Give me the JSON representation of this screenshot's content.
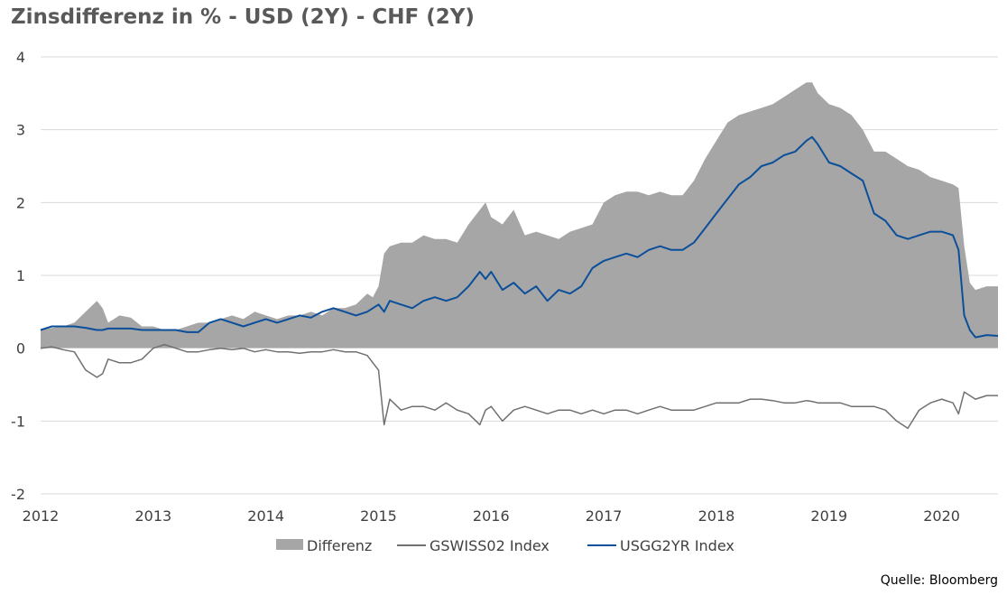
{
  "chart_data": {
    "type": "area",
    "title": "Zinsdifferenz in % - USD (2Y) - CHF (2Y)",
    "source": "Quelle: Bloomberg",
    "xlim": [
      2012.0,
      2020.5
    ],
    "ylim": [
      -2,
      4
    ],
    "y_ticks": [
      "-2",
      "-1",
      "0",
      "1",
      "2",
      "3",
      "4"
    ],
    "x_ticks": [
      "2012",
      "2013",
      "2014",
      "2015",
      "2016",
      "2017",
      "2018",
      "2019",
      "2020"
    ],
    "grid": "horizontal",
    "legend_position": "bottom",
    "x": [
      2012.0,
      2012.1,
      2012.2,
      2012.3,
      2012.4,
      2012.5,
      2012.55,
      2012.6,
      2012.7,
      2012.8,
      2012.9,
      2013.0,
      2013.1,
      2013.2,
      2013.3,
      2013.4,
      2013.5,
      2013.6,
      2013.7,
      2013.8,
      2013.9,
      2014.0,
      2014.1,
      2014.2,
      2014.3,
      2014.4,
      2014.5,
      2014.6,
      2014.7,
      2014.8,
      2014.9,
      2014.95,
      2015.0,
      2015.05,
      2015.1,
      2015.2,
      2015.3,
      2015.4,
      2015.5,
      2015.6,
      2015.7,
      2015.8,
      2015.9,
      2015.95,
      2016.0,
      2016.1,
      2016.2,
      2016.3,
      2016.4,
      2016.5,
      2016.6,
      2016.7,
      2016.8,
      2016.9,
      2017.0,
      2017.1,
      2017.2,
      2017.3,
      2017.4,
      2017.5,
      2017.6,
      2017.7,
      2017.8,
      2017.9,
      2018.0,
      2018.1,
      2018.2,
      2018.3,
      2018.4,
      2018.5,
      2018.6,
      2018.7,
      2018.8,
      2018.85,
      2018.9,
      2019.0,
      2019.1,
      2019.2,
      2019.3,
      2019.4,
      2019.5,
      2019.6,
      2019.7,
      2019.8,
      2019.9,
      2020.0,
      2020.1,
      2020.15,
      2020.2,
      2020.25,
      2020.3,
      2020.4,
      2020.5
    ],
    "series": [
      {
        "name": "Differenz",
        "color": "#a6a6a6",
        "values": [
          0.25,
          0.28,
          0.3,
          0.35,
          0.5,
          0.65,
          0.55,
          0.35,
          0.45,
          0.42,
          0.3,
          0.3,
          0.25,
          0.25,
          0.3,
          0.35,
          0.35,
          0.4,
          0.45,
          0.4,
          0.5,
          0.45,
          0.4,
          0.45,
          0.45,
          0.5,
          0.45,
          0.55,
          0.55,
          0.6,
          0.75,
          0.7,
          0.85,
          1.3,
          1.4,
          1.45,
          1.45,
          1.55,
          1.5,
          1.5,
          1.45,
          1.7,
          1.9,
          2.0,
          1.8,
          1.7,
          1.9,
          1.55,
          1.6,
          1.55,
          1.5,
          1.6,
          1.65,
          1.7,
          2.0,
          2.1,
          2.15,
          2.15,
          2.1,
          2.15,
          2.1,
          2.1,
          2.3,
          2.6,
          2.85,
          3.1,
          3.2,
          3.25,
          3.3,
          3.35,
          3.45,
          3.55,
          3.65,
          3.65,
          3.5,
          3.35,
          3.3,
          3.2,
          3.0,
          2.7,
          2.7,
          2.6,
          2.5,
          2.45,
          2.35,
          2.3,
          2.25,
          2.2,
          1.4,
          0.9,
          0.8,
          0.85,
          0.85
        ]
      },
      {
        "name": "GSWISS02 Index",
        "color": "#707070",
        "values": [
          0.0,
          0.02,
          -0.02,
          -0.05,
          -0.3,
          -0.4,
          -0.35,
          -0.15,
          -0.2,
          -0.2,
          -0.15,
          0.0,
          0.05,
          0.0,
          -0.05,
          -0.05,
          -0.02,
          0.0,
          -0.02,
          0.0,
          -0.05,
          -0.02,
          -0.05,
          -0.05,
          -0.07,
          -0.05,
          -0.05,
          -0.02,
          -0.05,
          -0.05,
          -0.1,
          -0.2,
          -0.3,
          -1.05,
          -0.7,
          -0.85,
          -0.8,
          -0.8,
          -0.85,
          -0.75,
          -0.85,
          -0.9,
          -1.05,
          -0.85,
          -0.8,
          -1.0,
          -0.85,
          -0.8,
          -0.85,
          -0.9,
          -0.85,
          -0.85,
          -0.9,
          -0.85,
          -0.9,
          -0.85,
          -0.85,
          -0.9,
          -0.85,
          -0.8,
          -0.85,
          -0.85,
          -0.85,
          -0.8,
          -0.75,
          -0.75,
          -0.75,
          -0.7,
          -0.7,
          -0.72,
          -0.75,
          -0.75,
          -0.72,
          -0.73,
          -0.75,
          -0.75,
          -0.75,
          -0.8,
          -0.8,
          -0.8,
          -0.85,
          -1.0,
          -1.1,
          -0.85,
          -0.75,
          -0.7,
          -0.75,
          -0.9,
          -0.6,
          -0.65,
          -0.7,
          -0.65,
          -0.65
        ]
      },
      {
        "name": "USGG2YR Index",
        "color": "#0b4f9a",
        "values": [
          0.25,
          0.3,
          0.3,
          0.3,
          0.28,
          0.25,
          0.25,
          0.27,
          0.27,
          0.27,
          0.25,
          0.25,
          0.25,
          0.25,
          0.22,
          0.22,
          0.35,
          0.4,
          0.35,
          0.3,
          0.35,
          0.4,
          0.35,
          0.4,
          0.45,
          0.42,
          0.5,
          0.55,
          0.5,
          0.45,
          0.5,
          0.55,
          0.6,
          0.5,
          0.65,
          0.6,
          0.55,
          0.65,
          0.7,
          0.65,
          0.7,
          0.85,
          1.05,
          0.95,
          1.05,
          0.8,
          0.9,
          0.75,
          0.85,
          0.65,
          0.8,
          0.75,
          0.85,
          1.1,
          1.2,
          1.25,
          1.3,
          1.25,
          1.35,
          1.4,
          1.35,
          1.35,
          1.45,
          1.65,
          1.85,
          2.05,
          2.25,
          2.35,
          2.5,
          2.55,
          2.65,
          2.7,
          2.85,
          2.9,
          2.8,
          2.55,
          2.5,
          2.4,
          2.3,
          1.85,
          1.75,
          1.55,
          1.5,
          1.55,
          1.6,
          1.6,
          1.55,
          1.35,
          0.45,
          0.25,
          0.15,
          0.18,
          0.17
        ]
      }
    ]
  }
}
